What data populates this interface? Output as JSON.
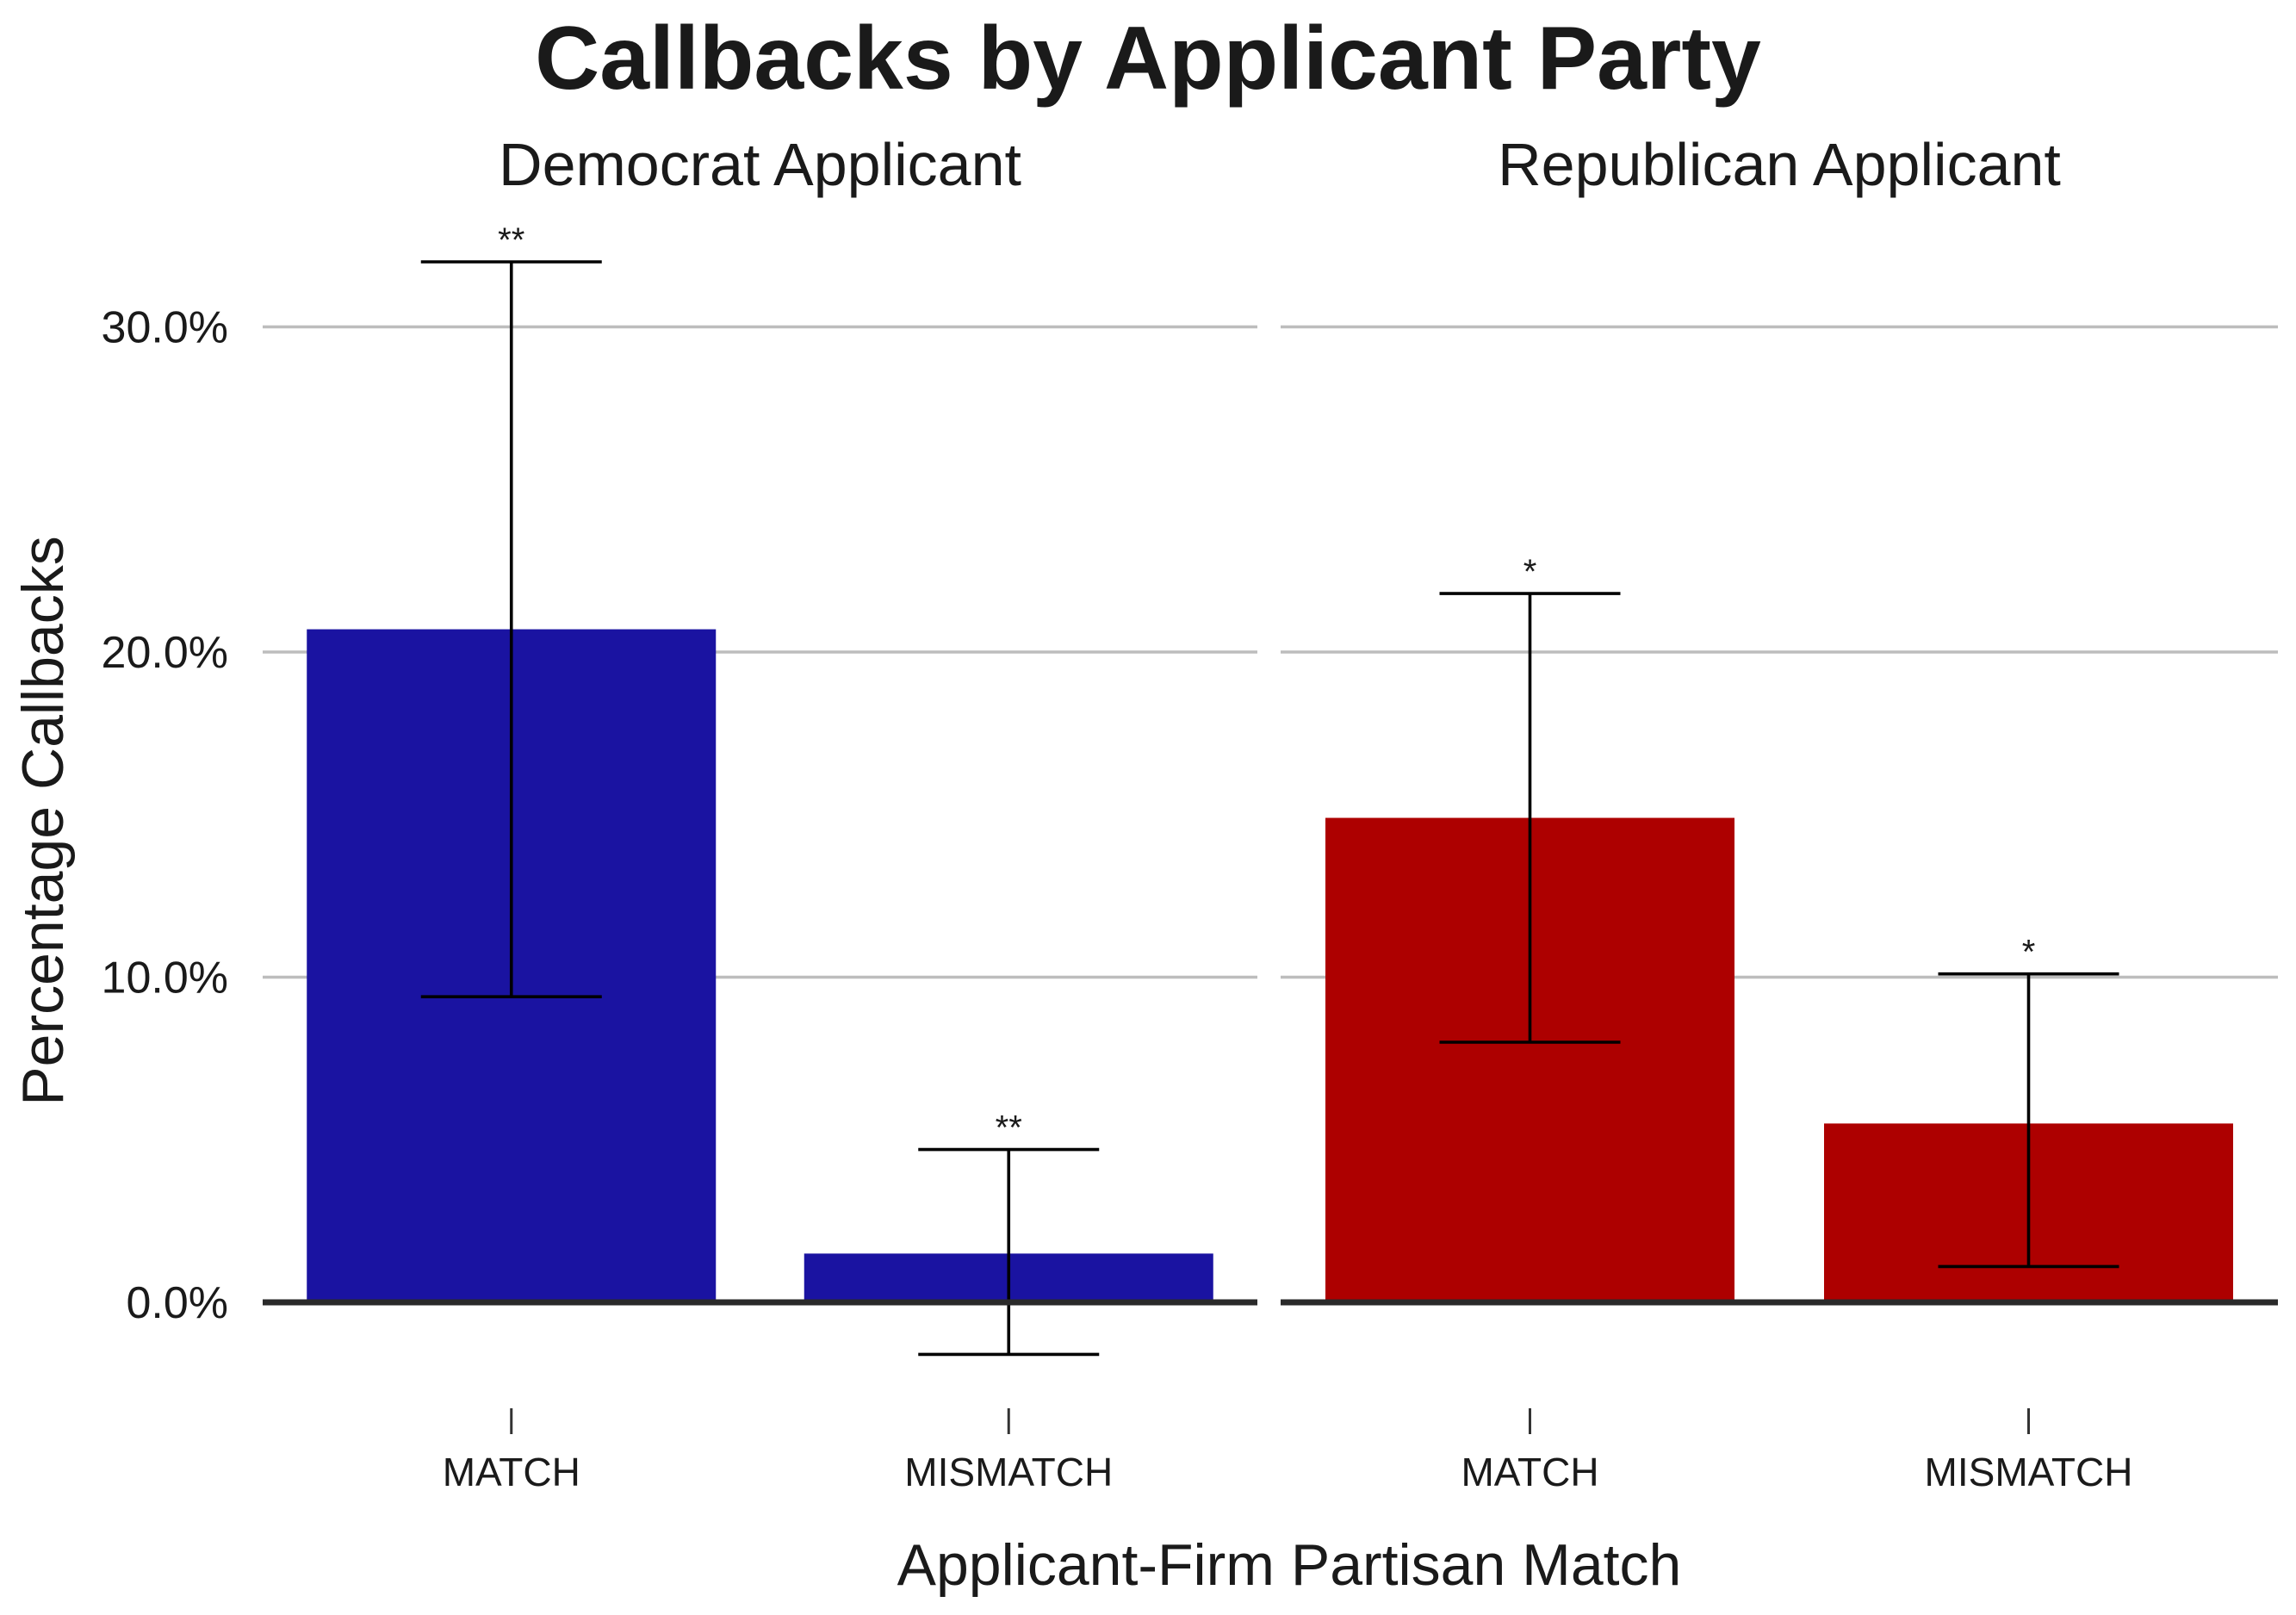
{
  "chart_data": {
    "type": "bar",
    "title": "Callbacks by Applicant Party",
    "xlabel": "Applicant-Firm Partisan Match",
    "ylabel": "Percentage Callbacks",
    "ylim": [
      -3.0,
      32.5
    ],
    "yticks": [
      0,
      10,
      20,
      30
    ],
    "ytick_labels": [
      "0.0%",
      "10.0%",
      "20.0%",
      "30.0%"
    ],
    "grid": true,
    "legend": "none",
    "categories": [
      "MATCH",
      "MISMATCH"
    ],
    "panels": [
      {
        "name": "Democrat Applicant",
        "color": "#1a13a1",
        "values": [
          20.7,
          1.5
        ],
        "ci_low": [
          9.4,
          -1.6
        ],
        "ci_high": [
          32.0,
          4.7
        ],
        "significance": [
          "**",
          "**"
        ]
      },
      {
        "name": "Republican Applicant",
        "color": "#ad0000",
        "values": [
          14.9,
          5.5
        ],
        "ci_low": [
          8.0,
          1.1
        ],
        "ci_high": [
          21.8,
          10.1
        ],
        "significance": [
          "*",
          "*"
        ]
      }
    ]
  }
}
